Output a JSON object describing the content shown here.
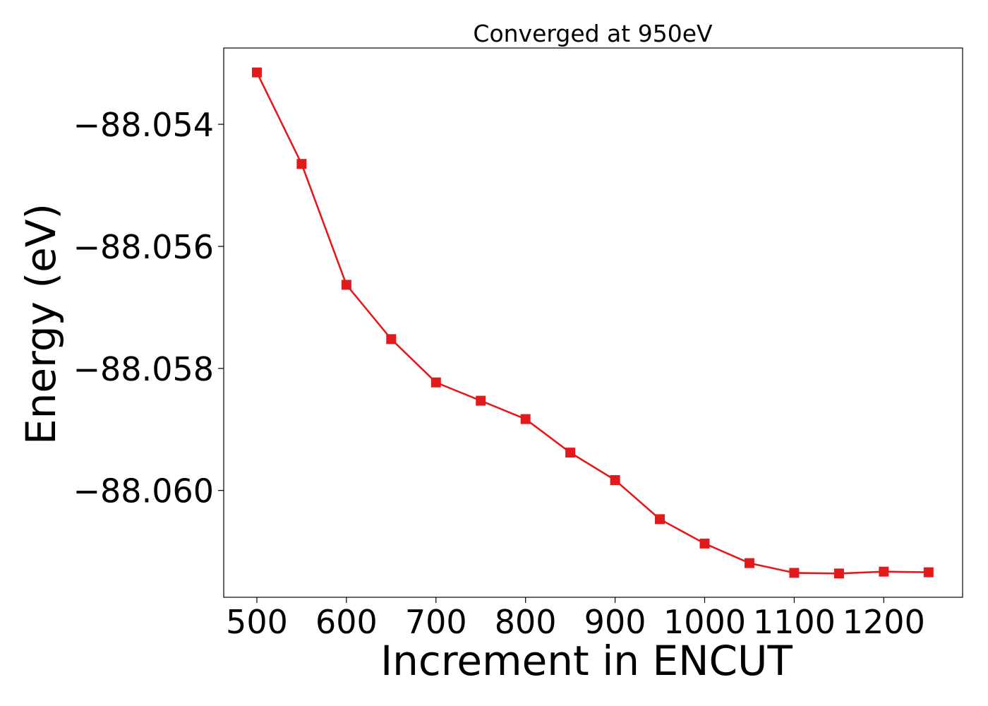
{
  "chart_data": {
    "type": "line",
    "title": "Converged at 950eV",
    "xlabel": "Increment in ENCUT",
    "ylabel": "Energy (eV)",
    "x": [
      500,
      550,
      600,
      650,
      700,
      750,
      800,
      850,
      900,
      950,
      1000,
      1050,
      1100,
      1150,
      1200,
      1250
    ],
    "series": [
      {
        "color": "#e31a1c",
        "marker": "square",
        "values": [
          -88.05315,
          -88.05465,
          -88.05663,
          -88.05752,
          -88.05823,
          -88.05853,
          -88.05883,
          -88.05938,
          -88.05983,
          -88.06047,
          -88.06087,
          -88.06119,
          -88.06135,
          -88.06136,
          -88.06133,
          -88.06134
        ]
      }
    ],
    "xticks": [
      500,
      600,
      700,
      800,
      900,
      1000,
      1100,
      1200
    ],
    "yticks": [
      -88.054,
      -88.056,
      -88.058,
      -88.06
    ],
    "xtick_labels": [
      "500",
      "600",
      "700",
      "800",
      "900",
      "1000",
      "1100",
      "1200"
    ],
    "ytick_labels": [
      "−88.054",
      "−88.056",
      "−88.058",
      "−88.060"
    ],
    "xlim": [
      463,
      1288
    ],
    "ylim": [
      -88.06175,
      -88.05275
    ],
    "grid": false,
    "legend": "none"
  }
}
